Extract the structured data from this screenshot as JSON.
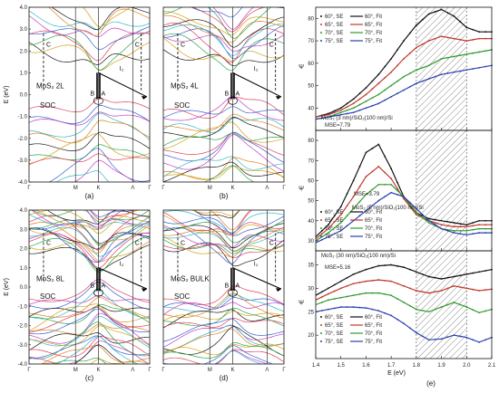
{
  "colors": {
    "band_palette": [
      "#1a1a1a",
      "#d4a017",
      "#2aa84a",
      "#e0405a",
      "#3a5fd0",
      "#c040c0",
      "#30b8c8",
      "#e08020"
    ],
    "angle_colors": [
      "#111111",
      "#c0392b",
      "#2e9a2e",
      "#2a3fb0"
    ],
    "hatch": "#888888"
  },
  "band_panels": [
    {
      "id": "a",
      "panel_label": "(a)",
      "material_label": "MoS₂ 2L",
      "soc_label": "SOC",
      "c_left": "C",
      "c_right": "C",
      "b_label": "B",
      "a_label": "A",
      "i_label": "I₂",
      "ylabel": "E (eV)",
      "yticks": [
        "4.0",
        "3.0",
        "2.0",
        "1.0",
        "0.0",
        "-1.0",
        "-2.0",
        "-3.0",
        "-4.0"
      ],
      "kpoints": [
        "Γ",
        "M",
        "K",
        "Λ",
        "Γ"
      ]
    },
    {
      "id": "b",
      "panel_label": "(b)",
      "material_label": "MoS₂ 4L",
      "soc_label": "SOC",
      "c_left": "C",
      "c_right": "C",
      "b_label": "B",
      "a_label": "A",
      "i_label": "I₂",
      "ylabel": "",
      "yticks": [],
      "kpoints": [
        "Γ",
        "M",
        "K",
        "Λ",
        "Γ"
      ]
    },
    {
      "id": "c",
      "panel_label": "(c)",
      "material_label": "MoS₂ 8L",
      "soc_label": "SOC",
      "c_left": "C",
      "c_right": "C",
      "b_label": "B",
      "a_label": "A",
      "i_label": "I₂",
      "ylabel": "E (eV)",
      "yticks": [
        "4.0",
        "3.0",
        "2.0",
        "1.0",
        "0.0",
        "-1.0",
        "-2.0",
        "-3.0",
        "-4.0"
      ],
      "kpoints": [
        "Γ",
        "M",
        "K",
        "Λ",
        "Γ"
      ]
    },
    {
      "id": "d",
      "panel_label": "(d)",
      "material_label": "MoS₂ BULK",
      "soc_label": "SOC",
      "c_left": "C",
      "c_right": "C",
      "b_label": "B",
      "a_label": "A",
      "i_label": "I₂",
      "ylabel": "",
      "yticks": [],
      "kpoints": [
        "Γ",
        "M",
        "K",
        "Λ",
        "Γ"
      ]
    }
  ],
  "chart_data": {
    "type": "line",
    "panel_label": "(e)",
    "xlabel": "E (eV)",
    "ylabel": "Ψ",
    "xlim": [
      1.4,
      2.1
    ],
    "xticks": [
      "1.4",
      "1.5",
      "1.6",
      "1.7",
      "1.8",
      "1.9",
      "2.0",
      "2.1"
    ],
    "hatch_range": [
      1.8,
      2.0
    ],
    "x": [
      1.4,
      1.45,
      1.5,
      1.55,
      1.6,
      1.65,
      1.7,
      1.75,
      1.8,
      1.85,
      1.9,
      1.95,
      2.0,
      2.05,
      2.1
    ],
    "subplots": [
      {
        "title": "MoS₂ (3 nm)/SiO₂(100 nm)/Si",
        "mse": "MSE=7.79",
        "ylim": [
          30,
          85
        ],
        "yticks": [
          "40",
          "50",
          "60",
          "70",
          "80"
        ],
        "legend_se": [
          "60°, SE",
          "65°, SE",
          "70°, SE",
          "75°, SE"
        ],
        "legend_fit": [
          "60°, Fit",
          "65°, Fit",
          "70°, Fit",
          "75°, Fit"
        ],
        "series": [
          {
            "name": "60°",
            "values": [
              36,
              37.5,
              40,
              44,
              49,
              55,
              62,
              70,
              77,
              82,
              84,
              81,
              76,
              74,
              74
            ]
          },
          {
            "name": "65°",
            "values": [
              36,
              37,
              39,
              42,
              46,
              51,
              56,
              62,
              67,
              70,
              72,
              71,
              70,
              71,
              71
            ]
          },
          {
            "name": "70°",
            "values": [
              35,
              36,
              38,
              40,
              43,
              46,
              50,
              54,
              57,
              59,
              62,
              63,
              64,
              65,
              66
            ]
          },
          {
            "name": "75°",
            "values": [
              35,
              36,
              37,
              38,
              40,
              42,
              45,
              48,
              51,
              53,
              55,
              56,
              57,
              58,
              59
            ]
          }
        ]
      },
      {
        "title": "MoS₂ (5 nm)/SiO₂(100 nm)/Si",
        "mse": "MSE=3.79",
        "ylim": [
          25,
          85
        ],
        "yticks": [
          "30",
          "40",
          "50",
          "60",
          "70",
          "80"
        ],
        "legend_se": [
          "60°, SE",
          "65°, SE",
          "70°, SE",
          "75°, SE"
        ],
        "legend_fit": [
          "60°, Fit",
          "65°, Fit",
          "70°, Fit",
          "75°, Fit"
        ],
        "series": [
          {
            "name": "60°",
            "values": [
              32,
              38,
              47,
              60,
              74,
              78,
              66,
              52,
              44,
              41,
              40,
              39,
              38,
              40,
              40
            ]
          },
          {
            "name": "65°",
            "values": [
              31,
              36,
              43,
              52,
              62,
              67,
              61,
              51,
              43,
              40,
              38,
              37,
              37,
              38,
              38
            ]
          },
          {
            "name": "70°",
            "values": [
              30,
              34,
              39,
              46,
              53,
              58,
              58,
              52,
              44,
              39,
              36,
              35,
              35,
              36,
              36
            ]
          },
          {
            "name": "75°",
            "values": [
              29,
              32,
              35,
              40,
              45,
              50,
              54,
              52,
              46,
              40,
              36,
              34,
              33,
              34,
              34
            ]
          }
        ]
      },
      {
        "title": "MoS₂ (30 nm)/SiO₂(100 nm)/Si",
        "mse": "MSE=5.16",
        "ylim": [
          15,
          38
        ],
        "yticks": [
          "20",
          "25",
          "30",
          "35"
        ],
        "legend_se": [
          "60°, SE",
          "65°, SE",
          "70°, SE",
          "75°, SE"
        ],
        "legend_fit": [
          "60°, Fit",
          "65°, Fit",
          "70°, Fit",
          "75°, Fit"
        ],
        "series": [
          {
            "name": "60°",
            "values": [
              28.5,
              30,
              31.5,
              33,
              34,
              34.8,
              35,
              34.5,
              33.5,
              32.5,
              32,
              32.5,
              33,
              33.5,
              34
            ]
          },
          {
            "name": "65°",
            "values": [
              27.5,
              28.8,
              30,
              31,
              31.5,
              31.8,
              31.5,
              30.5,
              29.5,
              29,
              29.5,
              30.5,
              30,
              29.5,
              29.8
            ]
          },
          {
            "name": "70°",
            "values": [
              26.5,
              27.5,
              28,
              28.5,
              29,
              29,
              28.5,
              27,
              25.5,
              25,
              26,
              27,
              26,
              24.8,
              25.5
            ]
          },
          {
            "name": "75°",
            "values": [
              25,
              25.5,
              26,
              26,
              25.8,
              25.2,
              24.2,
              22.5,
              20.5,
              19,
              19.2,
              20,
              19.5,
              18.5,
              19.5
            ]
          }
        ]
      }
    ]
  }
}
